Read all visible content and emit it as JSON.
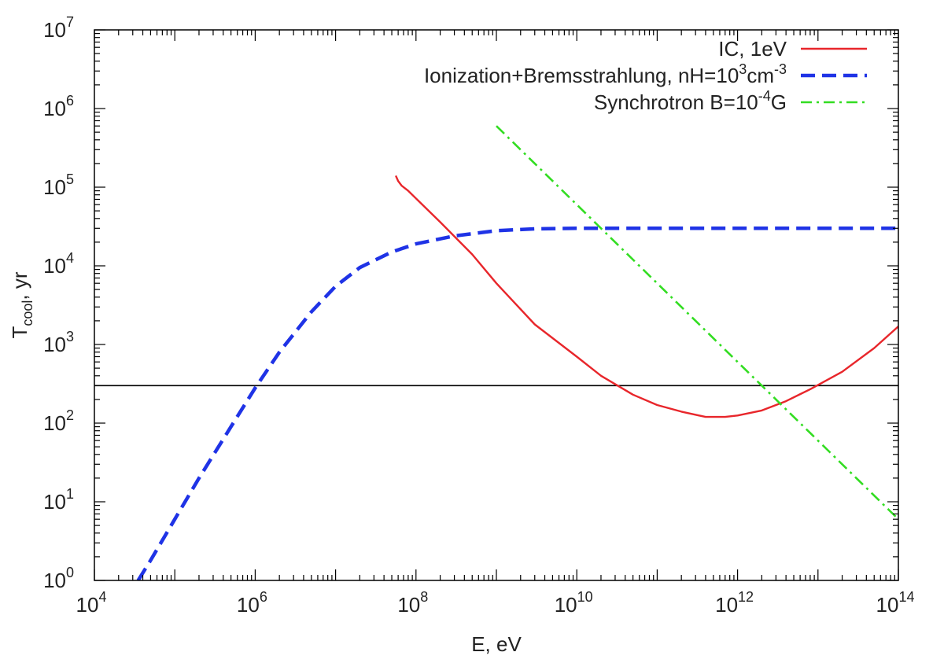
{
  "chart_data": {
    "type": "line",
    "xlabel": {
      "main": "E, eV"
    },
    "ylabel": {
      "main": "T",
      "sub": "cool",
      "rest": ", yr"
    },
    "x_scale": "log",
    "y_scale": "log",
    "xlim": [
      10000,
      100000000000000
    ],
    "ylim": [
      1,
      10000000
    ],
    "x_ticks": [
      {
        "base": "10",
        "exp": "4",
        "value": 10000
      },
      {
        "base": "10",
        "exp": "6",
        "value": 1000000
      },
      {
        "base": "10",
        "exp": "8",
        "value": 100000000
      },
      {
        "base": "10",
        "exp": "10",
        "value": 10000000000
      },
      {
        "base": "10",
        "exp": "12",
        "value": 1000000000000
      },
      {
        "base": "10",
        "exp": "14",
        "value": 100000000000000
      }
    ],
    "y_ticks": [
      {
        "base": "10",
        "exp": "0",
        "value": 1
      },
      {
        "base": "10",
        "exp": "1",
        "value": 10
      },
      {
        "base": "10",
        "exp": "2",
        "value": 100
      },
      {
        "base": "10",
        "exp": "3",
        "value": 1000
      },
      {
        "base": "10",
        "exp": "4",
        "value": 10000
      },
      {
        "base": "10",
        "exp": "5",
        "value": 100000
      },
      {
        "base": "10",
        "exp": "6",
        "value": 1000000
      },
      {
        "base": "10",
        "exp": "7",
        "value": 10000000
      }
    ],
    "grid": false,
    "legend_position": "top-right",
    "series": [
      {
        "key": "ic",
        "label_parts": [
          {
            "t": "IC, 1eV"
          }
        ],
        "color": "#e8262b",
        "dash": "solid",
        "points": [
          [
            56000000.0,
            140000
          ],
          [
            60000000.0,
            120000
          ],
          [
            66000000.0,
            105000
          ],
          [
            72000000.0,
            98000
          ],
          [
            80000000.0,
            90000
          ],
          [
            100000000.0,
            72000
          ],
          [
            200000000.0,
            36000
          ],
          [
            500000000.0,
            14000
          ],
          [
            1000000000.0,
            6000
          ],
          [
            3000000000.0,
            1800
          ],
          [
            10000000000.0,
            700
          ],
          [
            20000000000.0,
            400
          ],
          [
            50000000000.0,
            230
          ],
          [
            100000000000.0,
            170
          ],
          [
            200000000000.0,
            140
          ],
          [
            400000000000.0,
            120
          ],
          [
            700000000000.0,
            120
          ],
          [
            1000000000000.0,
            125
          ],
          [
            2000000000000.0,
            145
          ],
          [
            4000000000000.0,
            190
          ],
          [
            8000000000000.0,
            270
          ],
          [
            20000000000000.0,
            450
          ],
          [
            50000000000000.0,
            900
          ],
          [
            100000000000000.0,
            1700
          ]
        ]
      },
      {
        "key": "ion",
        "label_parts": [
          {
            "t": "Ionization+Bremsstrahlung, nH=10"
          },
          {
            "t": "3",
            "sup": true
          },
          {
            "t": "cm"
          },
          {
            "t": "-3",
            "sup": true
          }
        ],
        "color": "#1f33e6",
        "dash": "dashed",
        "points": [
          [
            35000.0,
            1.0
          ],
          [
            50000.0,
            1.8
          ],
          [
            100000.0,
            6.0
          ],
          [
            200000.0,
            20
          ],
          [
            500000.0,
            90
          ],
          [
            1000000.0,
            280
          ],
          [
            2000000.0,
            800
          ],
          [
            5000000.0,
            2600
          ],
          [
            10000000.0,
            5500
          ],
          [
            20000000.0,
            9500
          ],
          [
            50000000.0,
            15000
          ],
          [
            100000000.0,
            19000
          ],
          [
            300000000.0,
            24000
          ],
          [
            1000000000.0,
            28000
          ],
          [
            3000000000.0,
            29500
          ],
          [
            10000000000.0,
            30000
          ],
          [
            1000000000000.0,
            30000
          ],
          [
            100000000000000.0,
            30000
          ]
        ]
      },
      {
        "key": "syn",
        "label_parts": [
          {
            "t": "Synchrotron B=10"
          },
          {
            "t": "-4",
            "sup": true
          },
          {
            "t": "G"
          }
        ],
        "color": "#33dd22",
        "dash": "dashdot",
        "points": [
          [
            1000000000.0,
            600000
          ],
          [
            100000000000000.0,
            6
          ]
        ]
      }
    ],
    "reference_lines": [
      {
        "y": 300,
        "color": "#000000"
      }
    ]
  }
}
